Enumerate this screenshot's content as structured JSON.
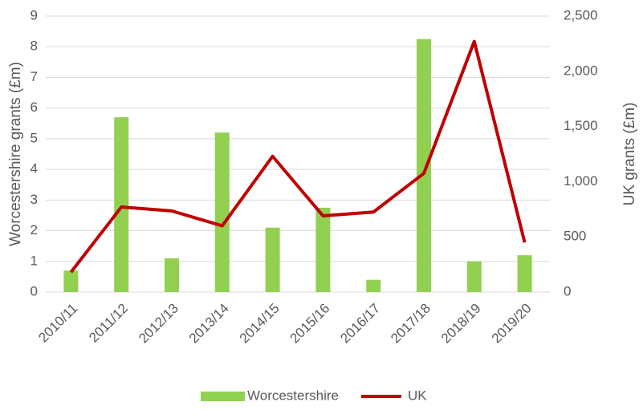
{
  "chart_data": {
    "type": "bar_line",
    "y_label": "Worcestershire grants (£m)",
    "y2_label": "UK grants (£m)",
    "categories": [
      "2010/11",
      "2011/12",
      "2012/13",
      "2013/14",
      "2014/15",
      "2015/16",
      "2016/17",
      "2017/18",
      "2018/19",
      "2019/20"
    ],
    "series": [
      {
        "name": "Worcestershire",
        "type": "bar",
        "color": "#92d050",
        "values": [
          0.7,
          5.7,
          1.1,
          5.2,
          2.1,
          2.75,
          0.4,
          8.25,
          1.0,
          1.2
        ]
      },
      {
        "name": "UK",
        "type": "line",
        "axis": "y2",
        "color": "#c00000",
        "values": [
          180,
          770,
          735,
          600,
          1230,
          690,
          725,
          1075,
          2270,
          450
        ]
      }
    ],
    "ylim": [
      0,
      9
    ],
    "yticks": [
      0,
      1,
      2,
      3,
      4,
      5,
      6,
      7,
      8,
      9
    ],
    "y2lim": [
      0,
      2500
    ],
    "y2ticks": [
      0,
      500,
      {
        "value": 1000,
        "label": "1,000"
      },
      {
        "value": 1500,
        "label": "1,500"
      },
      {
        "value": 2000,
        "label": "2,000"
      },
      {
        "value": 2500,
        "label": "2,500"
      }
    ],
    "grid": true,
    "legend": "bottom"
  }
}
